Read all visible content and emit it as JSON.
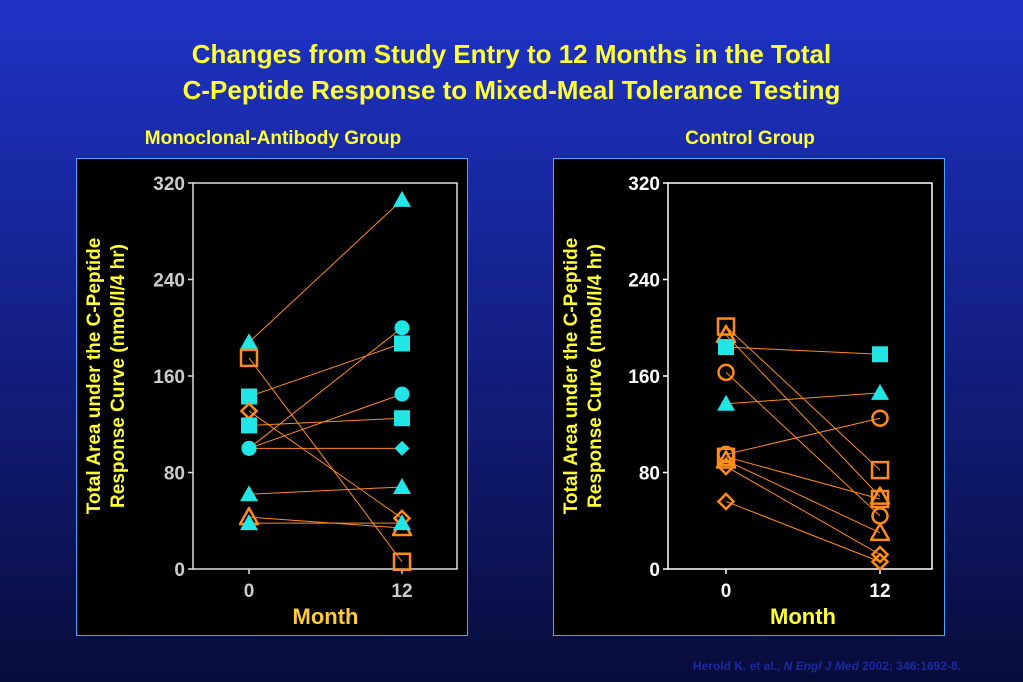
{
  "title_line1": "Changes from Study Entry to 12 Months in the Total",
  "title_line2": "C-Peptide Response to Mixed-Meal Tolerance Testing",
  "citation": {
    "authors": "Herold K. et al., ",
    "journal": "N Engl J Med",
    "ref": " 2002; 346:1692-8."
  },
  "colors": {
    "background": "#1a2bb8",
    "title": "#ffff33",
    "cyan": "#22e5e5",
    "orange": "#ff8c1a",
    "axis_text_left": "#cccccc",
    "axis_text_right": "#ffffff"
  },
  "chart_data": [
    {
      "type": "scatter",
      "title": "Monoclonal-Antibody Group",
      "xlabel": "Month",
      "ylabel_line1": "Total Area under the C-Peptide",
      "ylabel_line2": "Response Curve (nmol/l/4 hr)",
      "x_ticks": [
        "0",
        "12"
      ],
      "y_ticks": [
        "0",
        "80",
        "160",
        "240",
        "320"
      ],
      "ylim": [
        0,
        320
      ],
      "series": [
        {
          "marker": "triangle",
          "color": "cyan",
          "filled": true,
          "values": [
            188,
            306
          ]
        },
        {
          "marker": "square",
          "color": "orange",
          "filled": false,
          "values": [
            175,
            6
          ]
        },
        {
          "marker": "square",
          "color": "cyan",
          "filled": true,
          "values": [
            143,
            187
          ]
        },
        {
          "marker": "diamond",
          "color": "orange",
          "filled": false,
          "values": [
            131,
            42
          ]
        },
        {
          "marker": "square",
          "color": "cyan",
          "filled": true,
          "values": [
            119,
            125
          ]
        },
        {
          "marker": "circle",
          "color": "cyan",
          "filled": true,
          "values": [
            100,
            200
          ]
        },
        {
          "marker": "circle",
          "color": "cyan",
          "filled": true,
          "values": [
            100,
            145
          ]
        },
        {
          "marker": "diamond",
          "color": "cyan",
          "filled": true,
          "values": [
            100,
            100
          ]
        },
        {
          "marker": "triangle",
          "color": "cyan",
          "filled": true,
          "values": [
            62,
            68
          ]
        },
        {
          "marker": "triangle",
          "color": "orange",
          "filled": false,
          "values": [
            43,
            34
          ]
        },
        {
          "marker": "triangle",
          "color": "cyan",
          "filled": true,
          "values": [
            38,
            38
          ]
        }
      ]
    },
    {
      "type": "scatter",
      "title": "Control Group",
      "xlabel": "Month",
      "ylabel_line1": "Total Area under the C-Peptide",
      "ylabel_line2": "Response Curve (nmol/l/4 hr)",
      "x_ticks": [
        "0",
        "12"
      ],
      "y_ticks": [
        "0",
        "80",
        "160",
        "240",
        "320"
      ],
      "ylim": [
        0,
        320
      ],
      "series": [
        {
          "marker": "square",
          "color": "orange",
          "filled": false,
          "values": [
            201,
            82
          ]
        },
        {
          "marker": "triangle",
          "color": "orange",
          "filled": false,
          "values": [
            194,
            60
          ]
        },
        {
          "marker": "square",
          "color": "cyan",
          "filled": true,
          "values": [
            184,
            178
          ]
        },
        {
          "marker": "circle",
          "color": "orange",
          "filled": false,
          "values": [
            163,
            44
          ]
        },
        {
          "marker": "triangle",
          "color": "cyan",
          "filled": true,
          "values": [
            137,
            146
          ]
        },
        {
          "marker": "circle",
          "color": "orange",
          "filled": false,
          "values": [
            95,
            125
          ]
        },
        {
          "marker": "square",
          "color": "orange",
          "filled": false,
          "values": [
            93,
            58
          ]
        },
        {
          "marker": "triangle",
          "color": "orange",
          "filled": false,
          "values": [
            90,
            30
          ]
        },
        {
          "marker": "diamond",
          "color": "orange",
          "filled": false,
          "values": [
            85,
            12
          ]
        },
        {
          "marker": "diamond",
          "color": "orange",
          "filled": false,
          "values": [
            56,
            6
          ]
        }
      ]
    }
  ]
}
